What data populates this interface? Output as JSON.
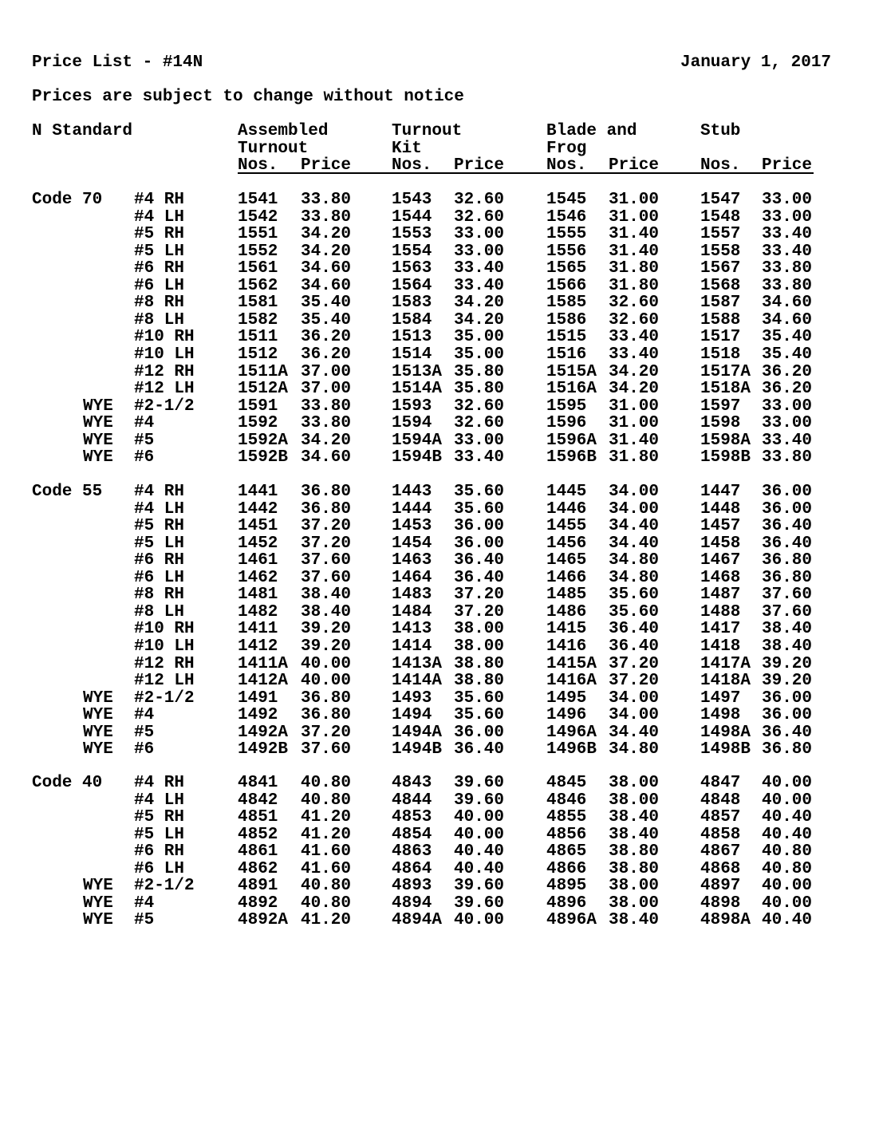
{
  "header": {
    "title": "Price List - #14N",
    "date": "January 1, 2017",
    "notice": "Prices are subject to change without notice"
  },
  "columns": {
    "scale": "N Standard",
    "groups": [
      {
        "line1": "Assembled",
        "line2": "Turnout"
      },
      {
        "line1": "Turnout",
        "line2": "Kit"
      },
      {
        "line1": "Blade and",
        "line2": "Frog"
      },
      {
        "line1": "Stub",
        "line2": ""
      }
    ],
    "nos_label": "Nos.",
    "price_label": "Price"
  },
  "sections": [
    {
      "label": "Code 70",
      "rows": [
        [
          "",
          "#4 RH",
          "1541",
          "33.80",
          "1543",
          "32.60",
          "1545",
          "31.00",
          "1547",
          "33.00"
        ],
        [
          "",
          "#4 LH",
          "1542",
          "33.80",
          "1544",
          "32.60",
          "1546",
          "31.00",
          "1548",
          "33.00"
        ],
        [
          "",
          "#5 RH",
          "1551",
          "34.20",
          "1553",
          "33.00",
          "1555",
          "31.40",
          "1557",
          "33.40"
        ],
        [
          "",
          "#5 LH",
          "1552",
          "34.20",
          "1554",
          "33.00",
          "1556",
          "31.40",
          "1558",
          "33.40"
        ],
        [
          "",
          "#6 RH",
          "1561",
          "34.60",
          "1563",
          "33.40",
          "1565",
          "31.80",
          "1567",
          "33.80"
        ],
        [
          "",
          "#6 LH",
          "1562",
          "34.60",
          "1564",
          "33.40",
          "1566",
          "31.80",
          "1568",
          "33.80"
        ],
        [
          "",
          "#8 RH",
          "1581",
          "35.40",
          "1583",
          "34.20",
          "1585",
          "32.60",
          "1587",
          "34.60"
        ],
        [
          "",
          "#8 LH",
          "1582",
          "35.40",
          "1584",
          "34.20",
          "1586",
          "32.60",
          "1588",
          "34.60"
        ],
        [
          "",
          "#10 RH",
          "1511",
          "36.20",
          "1513",
          "35.00",
          "1515",
          "33.40",
          "1517",
          "35.40"
        ],
        [
          "",
          "#10 LH",
          "1512",
          "36.20",
          "1514",
          "35.00",
          "1516",
          "33.40",
          "1518",
          "35.40"
        ],
        [
          "",
          "#12 RH",
          "1511A",
          "37.00",
          "1513A",
          "35.80",
          "1515A",
          "34.20",
          "1517A",
          "36.20"
        ],
        [
          "",
          "#12 LH",
          "1512A",
          "37.00",
          "1514A",
          "35.80",
          "1516A",
          "34.20",
          "1518A",
          "36.20"
        ],
        [
          "WYE",
          "#2-1/2",
          "1591",
          "33.80",
          "1593",
          "32.60",
          "1595",
          "31.00",
          "1597",
          "33.00"
        ],
        [
          "WYE",
          "#4",
          "1592",
          "33.80",
          "1594",
          "32.60",
          "1596",
          "31.00",
          "1598",
          "33.00"
        ],
        [
          "WYE",
          "#5",
          "1592A",
          "34.20",
          "1594A",
          "33.00",
          "1596A",
          "31.40",
          "1598A",
          "33.40"
        ],
        [
          "WYE",
          "#6",
          "1592B",
          "34.60",
          "1594B",
          "33.40",
          "1596B",
          "31.80",
          "1598B",
          "33.80"
        ]
      ]
    },
    {
      "label": "Code 55",
      "rows": [
        [
          "",
          "#4 RH",
          "1441",
          "36.80",
          "1443",
          "35.60",
          "1445",
          "34.00",
          "1447",
          "36.00"
        ],
        [
          "",
          "#4 LH",
          "1442",
          "36.80",
          "1444",
          "35.60",
          "1446",
          "34.00",
          "1448",
          "36.00"
        ],
        [
          "",
          "#5 RH",
          "1451",
          "37.20",
          "1453",
          "36.00",
          "1455",
          "34.40",
          "1457",
          "36.40"
        ],
        [
          "",
          "#5 LH",
          "1452",
          "37.20",
          "1454",
          "36.00",
          "1456",
          "34.40",
          "1458",
          "36.40"
        ],
        [
          "",
          "#6 RH",
          "1461",
          "37.60",
          "1463",
          "36.40",
          "1465",
          "34.80",
          "1467",
          "36.80"
        ],
        [
          "",
          "#6 LH",
          "1462",
          "37.60",
          "1464",
          "36.40",
          "1466",
          "34.80",
          "1468",
          "36.80"
        ],
        [
          "",
          "#8 RH",
          "1481",
          "38.40",
          "1483",
          "37.20",
          "1485",
          "35.60",
          "1487",
          "37.60"
        ],
        [
          "",
          "#8 LH",
          "1482",
          "38.40",
          "1484",
          "37.20",
          "1486",
          "35.60",
          "1488",
          "37.60"
        ],
        [
          "",
          "#10 RH",
          "1411",
          "39.20",
          "1413",
          "38.00",
          "1415",
          "36.40",
          "1417",
          "38.40"
        ],
        [
          "",
          "#10 LH",
          "1412",
          "39.20",
          "1414",
          "38.00",
          "1416",
          "36.40",
          "1418",
          "38.40"
        ],
        [
          "",
          "#12 RH",
          "1411A",
          "40.00",
          "1413A",
          "38.80",
          "1415A",
          "37.20",
          "1417A",
          "39.20"
        ],
        [
          "",
          "#12 LH",
          "1412A",
          "40.00",
          "1414A",
          "38.80",
          "1416A",
          "37.20",
          "1418A",
          "39.20"
        ],
        [
          "WYE",
          "#2-1/2",
          "1491",
          "36.80",
          "1493",
          "35.60",
          "1495",
          "34.00",
          "1497",
          "36.00"
        ],
        [
          "WYE",
          "#4",
          "1492",
          "36.80",
          "1494",
          "35.60",
          "1496",
          "34.00",
          "1498",
          "36.00"
        ],
        [
          "WYE",
          "#5",
          "1492A",
          "37.20",
          "1494A",
          "36.00",
          "1496A",
          "34.40",
          "1498A",
          "36.40"
        ],
        [
          "WYE",
          "#6",
          "1492B",
          "37.60",
          "1494B",
          "36.40",
          "1496B",
          "34.80",
          "1498B",
          "36.80"
        ]
      ]
    },
    {
      "label": "Code 40",
      "rows": [
        [
          "",
          "#4 RH",
          "4841",
          "40.80",
          "4843",
          "39.60",
          "4845",
          "38.00",
          "4847",
          "40.00"
        ],
        [
          "",
          "#4 LH",
          "4842",
          "40.80",
          "4844",
          "39.60",
          "4846",
          "38.00",
          "4848",
          "40.00"
        ],
        [
          "",
          "#5 RH",
          "4851",
          "41.20",
          "4853",
          "40.00",
          "4855",
          "38.40",
          "4857",
          "40.40"
        ],
        [
          "",
          "#5 LH",
          "4852",
          "41.20",
          "4854",
          "40.00",
          "4856",
          "38.40",
          "4858",
          "40.40"
        ],
        [
          "",
          "#6 RH",
          "4861",
          "41.60",
          "4863",
          "40.40",
          "4865",
          "38.80",
          "4867",
          "40.80"
        ],
        [
          "",
          "#6 LH",
          "4862",
          "41.60",
          "4864",
          "40.40",
          "4866",
          "38.80",
          "4868",
          "40.80"
        ],
        [
          "WYE",
          "#2-1/2",
          "4891",
          "40.80",
          "4893",
          "39.60",
          "4895",
          "38.00",
          "4897",
          "40.00"
        ],
        [
          "WYE",
          "#4",
          "4892",
          "40.80",
          "4894",
          "39.60",
          "4896",
          "38.00",
          "4898",
          "40.00"
        ],
        [
          "WYE",
          "#5",
          "4892A",
          "41.20",
          "4894A",
          "40.00",
          "4896A",
          "38.40",
          "4898A",
          "40.40"
        ]
      ]
    }
  ]
}
